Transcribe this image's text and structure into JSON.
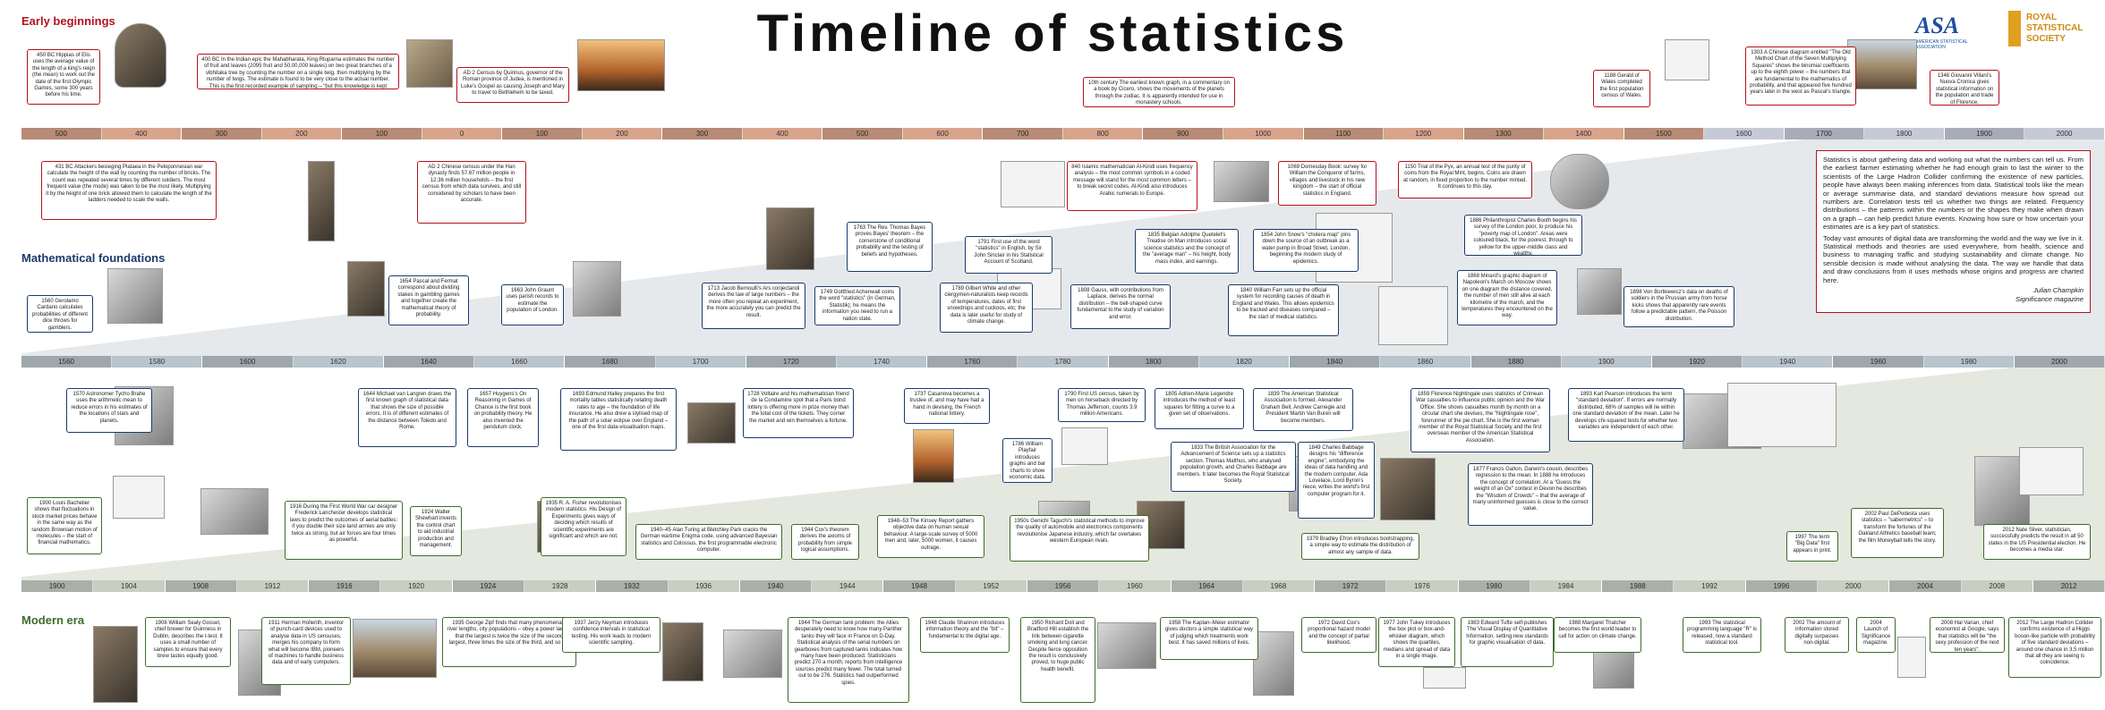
{
  "title": "Timeline of statistics",
  "sections": {
    "early": "Early beginnings",
    "math": "Mathematical foundations",
    "modern": "Modern era"
  },
  "logos": {
    "asa": "ASA",
    "asa_sub": "AMERICAN STATISTICAL ASSOCIATION",
    "rss": "ROYAL STATISTICAL SOCIETY"
  },
  "bands": {
    "early": [
      "500",
      "400",
      "300",
      "200",
      "100",
      "0",
      "100",
      "200",
      "300",
      "400",
      "500",
      "600",
      "700",
      "800",
      "900",
      "1000",
      "1100",
      "1200",
      "1300",
      "1400",
      "1500",
      "1600",
      "1700",
      "1800",
      "1900",
      "2000"
    ],
    "math": [
      "1560",
      "1580",
      "1600",
      "1620",
      "1640",
      "1660",
      "1680",
      "1700",
      "1720",
      "1740",
      "1760",
      "1780",
      "1800",
      "1820",
      "1840",
      "1860",
      "1880",
      "1900",
      "1920",
      "1940",
      "1960",
      "1980",
      "2000"
    ],
    "modern": [
      "1900",
      "1904",
      "1908",
      "1912",
      "1916",
      "1920",
      "1924",
      "1928",
      "1932",
      "1936",
      "1940",
      "1944",
      "1948",
      "1952",
      "1956",
      "1960",
      "1964",
      "1968",
      "1972",
      "1976",
      "1980",
      "1984",
      "1988",
      "1992",
      "1996",
      "2000",
      "2004",
      "2008",
      "2012"
    ]
  },
  "intro": {
    "p1": "Statistics is about gathering data and working out what the numbers can tell us. From the earliest farmer estimating whether he had enough grain to last the winter to the scientists of the Large Hadron Collider confirming the existence of new particles, people have always been making inferences from data. Statistical tools like the mean or average summarise data, and standard deviations measure how spread out numbers are. Correlation tests tell us whether two things are related. Frequency distributions – the patterns within the numbers or the shapes they make when drawn on a graph – can help predict future events. Knowing how sure or how uncertain your estimates are is a key part of statistics.",
    "p2": "Today vast amounts of digital data are transforming the world and the way we live in it. Statistical methods and theories are used everywhere, from health, science and business to managing traffic and studying sustainability and climate change. No sensible decision is made without analysing the data. The way we handle that data and draw conclusions from it uses methods whose origins and progress are charted here.",
    "author": "Julian Champkin",
    "source": "Significance magazine"
  },
  "events_early_top": [
    {
      "t": "450 BC Hippias of Elis uses the average value of the length of a king's reign (the mean) to work out the date of the first Olympic Games, some 300 years before his time."
    },
    {
      "t": "400 BC In the Indian epic the Mahabharata, King Rtuparna estimates the number of fruit and leaves (2095 fruit and 50,00,000 leaves) on two great branches of a vibhitaka tree by counting the number on a single twig, then multiplying by the number of twigs. The estimate is found to be very close to the actual number. This is the first recorded example of sampling – \"but this knowledge is kept secret\", says the account."
    },
    {
      "t": "AD 2 Census by Quirinus, governor of the Roman province of Judea, is mentioned in Luke's Gospel as causing Joseph and Mary to travel to Bethlehem to be taxed."
    },
    {
      "t": "10th century The earliest known graph, in a commentary on a book by Cicero, shows the movements of the planets through the zodiac. It is apparently intended for use in monastery schools."
    },
    {
      "t": "1188 Gerald of Wales completed the first population census of Wales."
    },
    {
      "t": "1303 A Chinese diagram entitled \"The Old Method Chart of the Seven Multiplying Squares\" shows the binomial coefficients up to the eighth power – the numbers that are fundamental to the mathematics of probability, and that appeared five hundred years later in the west as Pascal's triangle."
    },
    {
      "t": "1346 Giovanni Villani's Nuova Cronica gives statistical information on the population and trade of Florence."
    }
  ],
  "events_early_bottom": [
    {
      "t": "431 BC Attackers besieging Plataea in the Peloponnesian war calculate the height of the wall by counting the number of bricks. The count was repeated several times by different soldiers. The most frequent value (the mode) was taken to be the most likely. Multiplying it by the height of one brick allowed them to calculate the length of the ladders needed to scale the walls."
    },
    {
      "t": "AD 2 Chinese census under the Han dynasty finds 57.67 million people in 12.36 million households – the first census from which data survives, and still considered by scholars to have been accurate."
    },
    {
      "t": "840 Islamic mathematician Al-Kindi uses frequency analysis – the most common symbols in a coded message will stand for the most common letters – to break secret codes. Al-Kindi also introduces Arabic numerals to Europe."
    },
    {
      "t": "1069 Domesday Book: survey for William the Conqueror of farms, villages and livestock in his new kingdom – the start of official statistics in England."
    },
    {
      "t": "1150 Trial of the Pyx, an annual test of the purity of coins from the Royal Mint, begins. Coins are drawn at random, in fixed proportion to the number minted. It continues to this day."
    }
  ],
  "events_math_top": [
    {
      "t": "1560 Gerolamo Cardano calculates probabilities of different dice throws for gamblers."
    },
    {
      "t": "1654 Pascal and Fermat correspond about dividing stakes in gambling games and together create the mathematical theory of probability."
    },
    {
      "t": "1663 John Graunt uses parish records to estimate the population of London."
    },
    {
      "t": "1713 Jacob Bernoulli's Ars conjectandi derives the law of large numbers – the more often you repeat an experiment, the more accurately you can predict the result."
    },
    {
      "t": "1749 Gottfried Achenwall coins the word \"statistics\" (in German, Statistik); he means the information you need to run a nation state."
    },
    {
      "t": "1763 The Rev. Thomas Bayes proves Bayes' theorem – the cornerstone of conditional probability and the testing of beliefs and hypotheses."
    },
    {
      "t": "1789 Gilbert White and other clergymen-naturalists keep records of temperatures, dates of first snowdrops and cuckoos, etc; the data is later useful for study of climate change."
    },
    {
      "t": "1791 First use of the word \"statistics\" in English, by Sir John Sinclair in his Statistical Account of Scotland."
    },
    {
      "t": "1808 Gauss, with contributions from Laplace, derives the normal distribution – the bell-shaped curve fundamental to the study of variation and error."
    },
    {
      "t": "1835 Belgian Adolphe Quetelet's Treatise on Man introduces social science statistics and the concept of the \"average man\" – his height, body mass index, and earnings."
    },
    {
      "t": "1840 William Farr sets up the official system for recording causes of death in England and Wales. This allows epidemics to be tracked and diseases compared – the start of medical statistics."
    },
    {
      "t": "1854 John Snow's \"cholera map\" pins down the source of an outbreak as a water pump in Broad Street, London, beginning the modern study of epidemics."
    },
    {
      "t": "1868 Minard's graphic diagram of Napoleon's March on Moscow shows on one diagram the distance covered, the number of men still alive at each kilometre of the march, and the temperatures they encountered on the way."
    },
    {
      "t": "1886 Philanthropist Charles Booth begins his survey of the London poor, to produce his \"poverty map of London\". Areas were coloured black, for the poorest, through to yellow for the upper-middle class and wealthy."
    },
    {
      "t": "1898 Von Bortkiewicz's data on deaths of soldiers in the Prussian army from horse kicks shows that apparently rare events follow a predictable pattern, the Poisson distribution."
    }
  ],
  "events_math_bottom": [
    {
      "t": "1570 Astronomer Tycho Brahe uses the arithmetic mean to reduce errors in his estimates of the locations of stars and planets."
    },
    {
      "t": "1644 Michael van Langren draws the first known graph of statistical data that shows the size of possible errors. It is of different estimates of the distance between Toledo and Rome."
    },
    {
      "t": "1657 Huygens's On Reasoning in Games of Chance is the first book on probability theory. He also invented the pendulum clock."
    },
    {
      "t": "1693 Edmund Halley prepares the first mortality tables statistically relating death rates to age – the foundation of life insurance. He also drew a stylised map of the path of a solar eclipse over England – one of the first data-visualisation maps."
    },
    {
      "t": "1728 Voltaire and his mathematician friend de la Condamine spot that a Paris bond lottery is offering more in prize money than the total cost of the tickets. They corner the market and win themselves a fortune."
    },
    {
      "t": "1737 Casanova becomes a trustee of, and may have had a hand in devising, the French national lottery."
    },
    {
      "t": "1786 William Playfair introduces graphs and bar charts to show economic data."
    },
    {
      "t": "1790 First US census, taken by men on horseback directed by Thomas Jefferson, counts 3.9 million Americans."
    },
    {
      "t": "1805 Adrien-Marie Legendre introduces the method of least squares for fitting a curve to a given set of observations."
    },
    {
      "t": "1833 The British Association for the Advancement of Science sets up a statistics section. Thomas Malthus, who analysed population growth, and Charles Babbage are members. It later becomes the Royal Statistical Society."
    },
    {
      "t": "1839 The American Statistical Association is formed. Alexander Graham Bell, Andrew Carnegie and President Martin Van Buren will become members."
    },
    {
      "t": "1849 Charles Babbage designs his \"difference engine\", embodying the ideas of data handling and the modern computer. Ada Lovelace, Lord Byron's niece, writes the world's first computer program for it."
    },
    {
      "t": "1859 Florence Nightingale uses statistics of Crimean War casualties to influence public opinion and the War Office. She shows casualties month by month on a circular chart she devises, the \"Nightingale rose\", forerunner of the pie chart. She is the first woman member of the Royal Statistical Society and the first overseas member of the American Statistical Association."
    },
    {
      "t": "1877 Francis Galton, Darwin's cousin, describes regression to the mean. In 1888 he introduces the concept of correlation. At a \"Guess the weight of an Ox\" contest in Devon he describes the \"Wisdom of Crowds\" – that the average of many uninformed guesses is close to the correct value."
    },
    {
      "t": "1893 Karl Pearson introduces the term \"standard deviation\". If errors are normally distributed, 68% of samples will lie within one standard deviation of the mean. Later he develops chi-squared tests for whether two variables are independent of each other."
    }
  ],
  "events_modern_top": [
    {
      "t": "1900 Louis Bachelier shows that fluctuations in stock market prices behave in the same way as the random Brownian motion of molecules – the start of financial mathematics."
    },
    {
      "t": "1916 During the First World War car designer Frederick Lanchester develops statistical laws to predict the outcomes of aerial battles: if you double their size land armies are only twice as strong, but air forces are four times as powerful."
    },
    {
      "t": "1924 Walter Shewhart invents the control chart to aid industrial production and management."
    },
    {
      "t": "1935 R. A. Fisher revolutionises modern statistics. His Design of Experiments gives ways of deciding which results of scientific experiments are significant and which are not."
    },
    {
      "t": "1940–45 Alan Turing at Bletchley Park cracks the German wartime Enigma code, using advanced Bayesian statistics and Colossus, the first programmable electronic computer."
    },
    {
      "t": "1944 Cox's theorem derives the axioms of probability from simple logical assumptions."
    },
    {
      "t": "1948–53 The Kinsey Report gathers objective data on human sexual behaviour. A large-scale survey of 5000 men and, later, 5000 women, it causes outrage."
    },
    {
      "t": "1950s Genichi Taguchi's statistical methods to improve the quality of automobile and electronics components revolutionise Japanese industry, which far overtakes western European rivals."
    },
    {
      "t": "1979 Bradley Efron introduces bootstrapping, a simple way to estimate the distribution of almost any sample of data."
    },
    {
      "t": "1997 The term \"Big Data\" first appears in print."
    },
    {
      "t": "2002 Paul DePodesta uses statistics – \"sabermetrics\" – to transform the fortunes of the Oakland Athletics baseball team; the film Moneyball tells the story."
    },
    {
      "t": "2012 Nate Silver, statistician, successfully predicts the result in all 50 states in the US Presidential election. He becomes a media star."
    }
  ],
  "events_modern_bottom": [
    {
      "t": "1908 William Sealy Gosset, chief brewer for Guinness in Dublin, describes the t-test. It uses a small number of samples to ensure that every brew tastes equally good."
    },
    {
      "t": "1911 Herman Hollerith, inventor of punch-card devices used to analyse data in US censuses, merges his company to form what will become IBM, pioneers of machines to handle business data and of early computers."
    },
    {
      "t": "1935 George Zipf finds that many phenomena – river lengths, city populations – obey a power law so that the largest is twice the size of the second largest, three times the size of the third, and so on."
    },
    {
      "t": "1937 Jerzy Neyman introduces confidence intervals in statistical testing. His work leads to modern scientific sampling."
    },
    {
      "t": "1944 The German tank problem: the Allies desperately need to know how many Panther tanks they will face in France on D-Day. Statistical analysis of the serial numbers on gearboxes from captured tanks indicates how many have been produced. Statisticians predict 270 a month; reports from intelligence sources predict many fewer. The total turned out to be 276. Statistics had outperformed spies."
    },
    {
      "t": "1948 Claude Shannon introduces information theory and the \"bit\" – fundamental to the digital age."
    },
    {
      "t": "1950 Richard Doll and Bradford Hill establish the link between cigarette smoking and lung cancer. Despite fierce opposition the result is conclusively proved, to huge public health benefit."
    },
    {
      "t": "1958 The Kaplan–Meier estimator gives doctors a simple statistical way of judging which treatments work best. It has saved millions of lives."
    },
    {
      "t": "1972 David Cox's proportional hazard model and the concept of partial likelihood."
    },
    {
      "t": "1977 John Tukey introduces the box plot or box-and-whisker diagram, which shows the quartiles, medians and spread of data in a single image."
    },
    {
      "t": "1983 Edward Tufte self-publishes The Visual Display of Quantitative Information, setting new standards for graphic visualisation of data."
    },
    {
      "t": "1988 Margaret Thatcher becomes the first world leader to call for action on climate change."
    },
    {
      "t": "1993 The statistical programming language \"R\" is released, now a standard statistical tool."
    },
    {
      "t": "2002 The amount of information stored digitally surpasses non-digital."
    },
    {
      "t": "2004 Launch of Significance magazine."
    },
    {
      "t": "2008 Hal Varian, chief economist at Google, says that statistics will be \"the sexy profession of the next ten years\"."
    },
    {
      "t": "2012 The Large Hadron Collider confirms existence of a Higgs boson-like particle with probability of five standard deviations – around one chance in 3.5 million that all they are seeing is coincidence."
    }
  ],
  "colors": {
    "early": "#b2121e",
    "math": "#1c3a6e",
    "modern": "#3f6b2a",
    "band_early": "#d8a48c",
    "band_math": "#b9c4cc",
    "band_modern": "#c8cfc2"
  }
}
